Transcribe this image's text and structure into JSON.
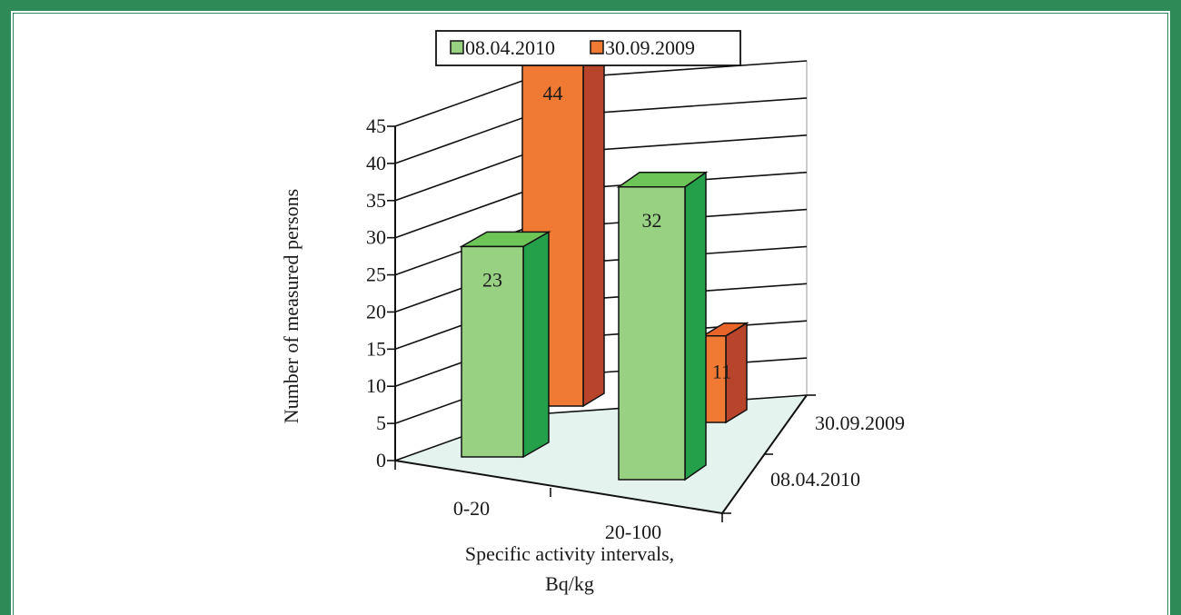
{
  "chart_data": {
    "type": "bar",
    "subtype": "3d-clustered-column",
    "categories": [
      "0-20",
      "20-100"
    ],
    "series": [
      {
        "name": "08.04.2010",
        "values": [
          23,
          32
        ]
      },
      {
        "name": "30.09.2009",
        "values": [
          44,
          11
        ]
      }
    ],
    "ylabel": "Number of measured persons",
    "xlabel_lines": [
      "Specific activity intervals,",
      "Bq/kg"
    ],
    "depth_labels": [
      "30.09.2009",
      "08.04.2010"
    ],
    "ylim": [
      0,
      45
    ],
    "yticks": [
      0,
      5,
      10,
      15,
      20,
      25,
      30,
      35,
      40,
      45
    ],
    "grid": true,
    "legend_position": "top",
    "colors": {
      "green_front": "#98d182",
      "green_side": "#24a04a",
      "green_top": "#6cc556",
      "orange_front": "#f07a33",
      "orange_side": "#b8442c",
      "orange_top": "#e8652a",
      "floor": "#e5f3ee",
      "frame": "#2e8b57"
    }
  }
}
